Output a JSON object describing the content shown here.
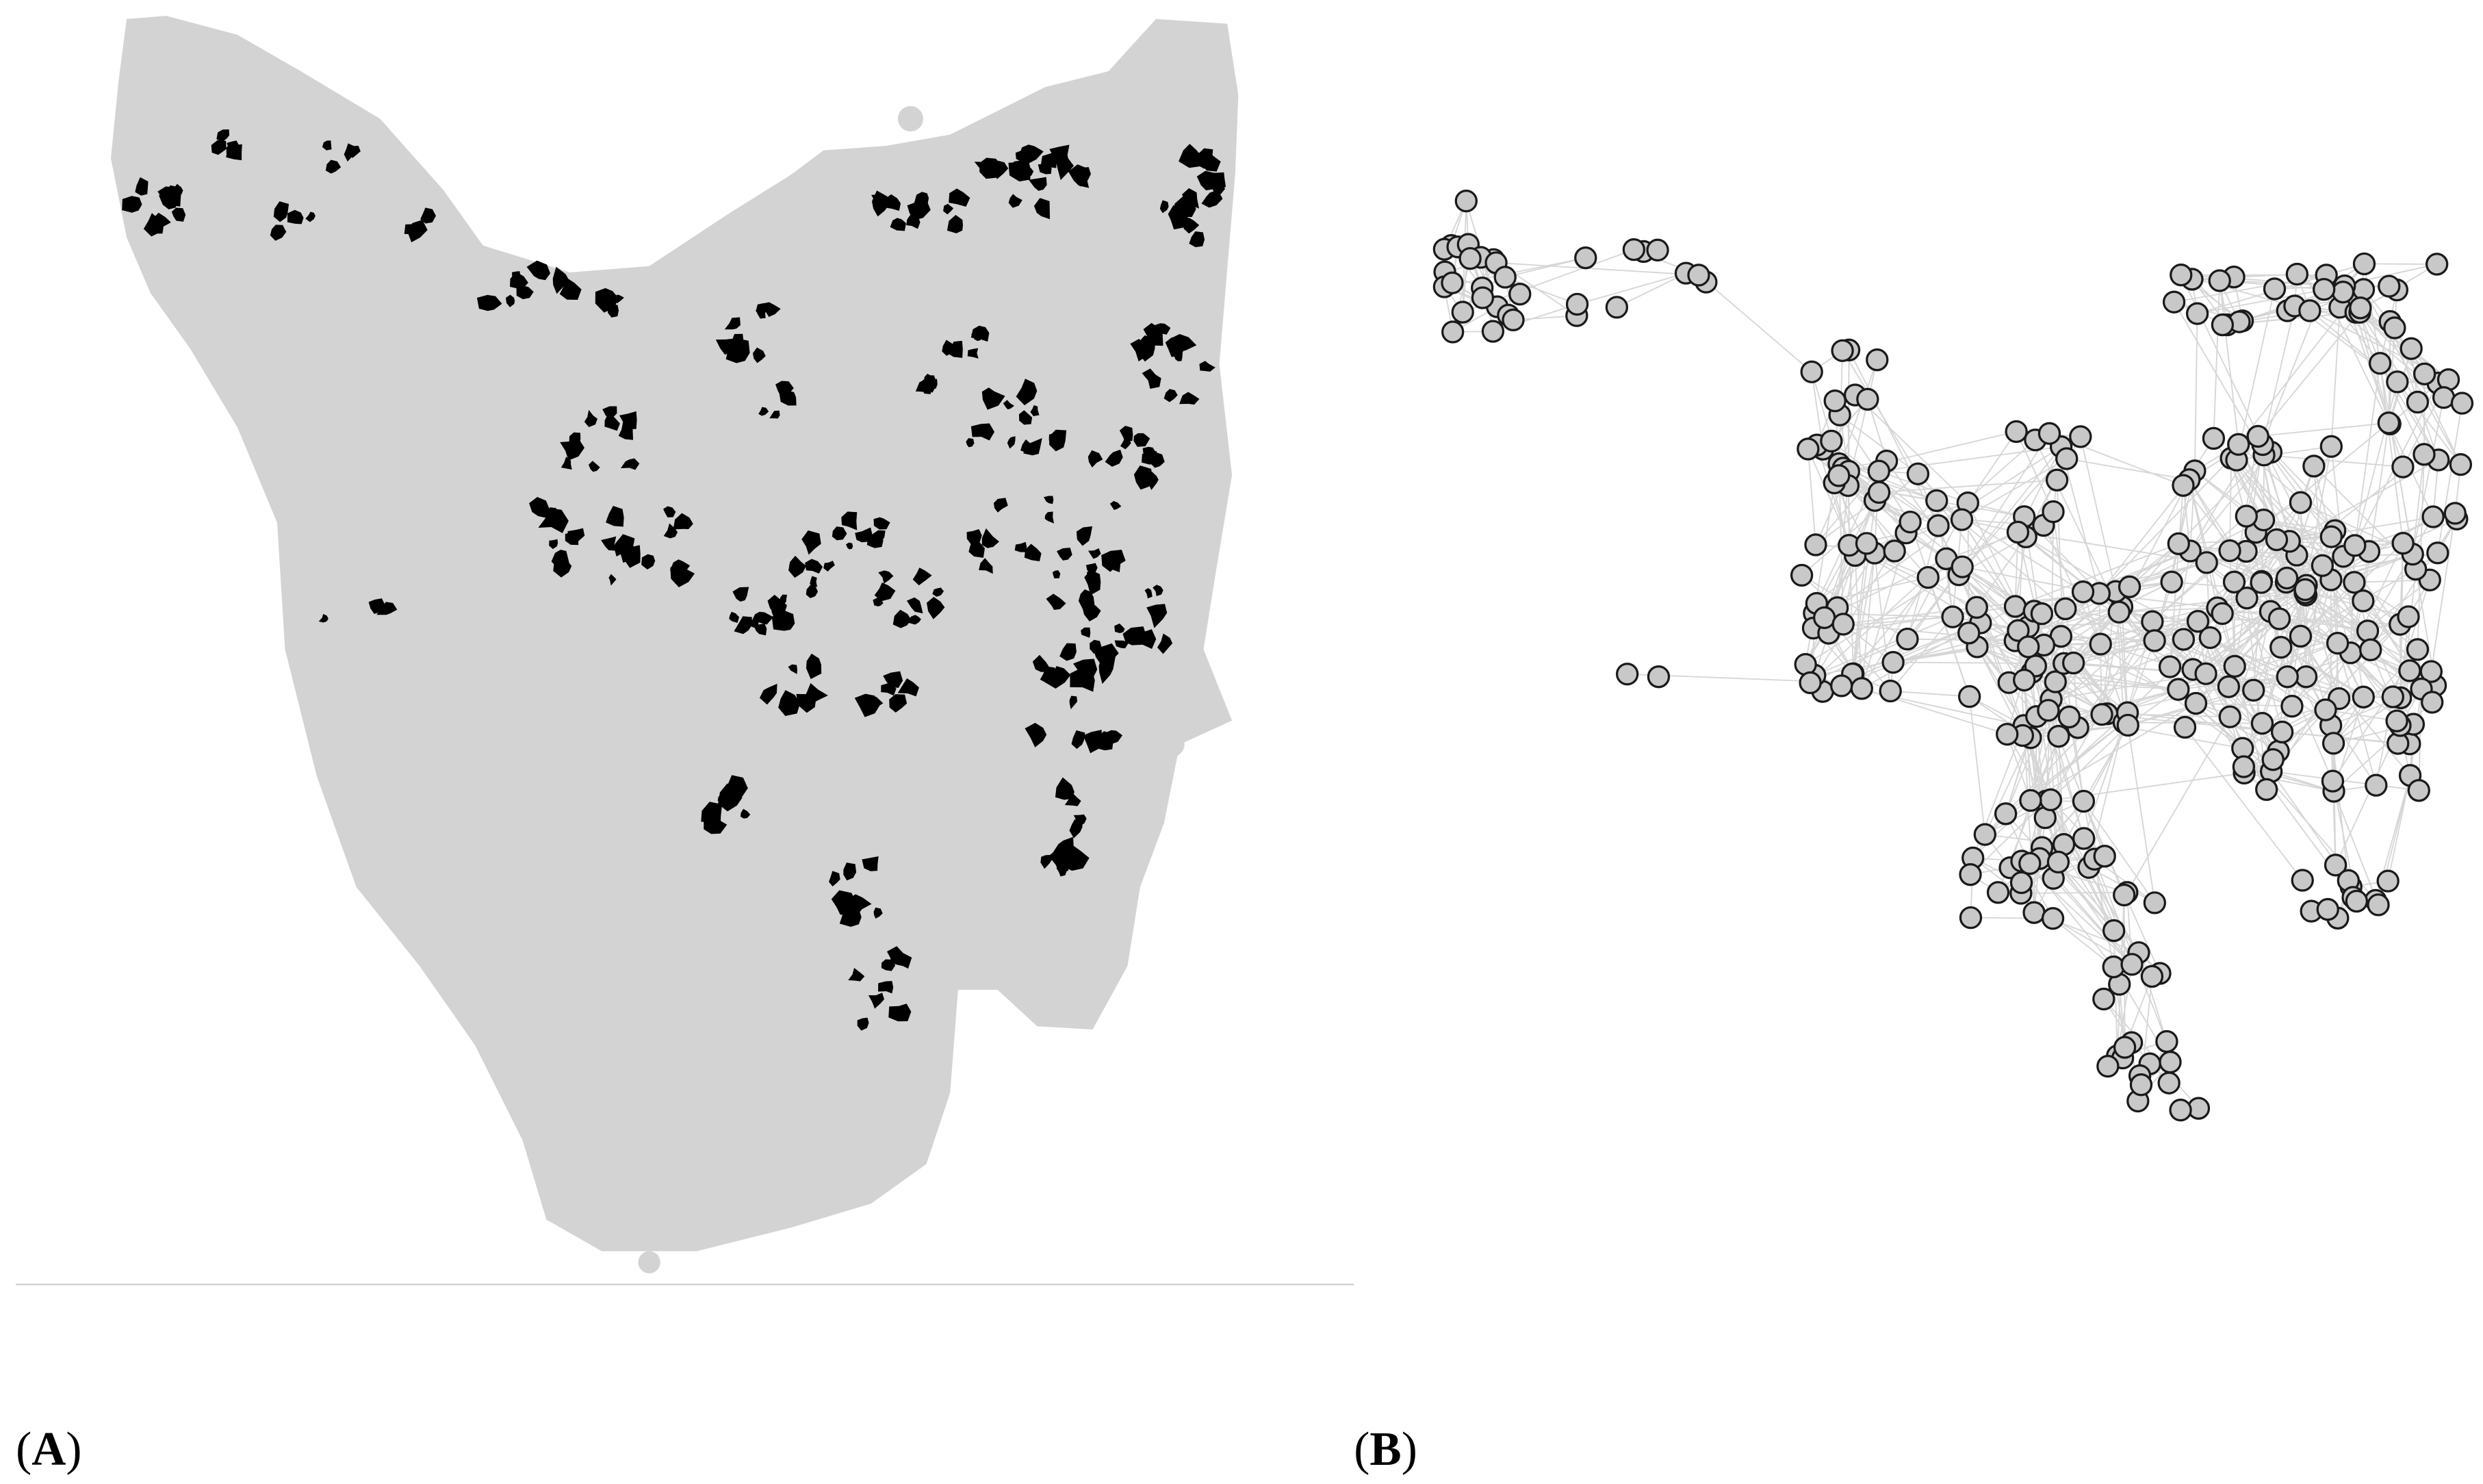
{
  "panels": [
    {
      "label_parts": [
        "(",
        "A",
        ")"
      ]
    },
    {
      "label_parts": [
        "(",
        "B",
        ")"
      ]
    }
  ]
}
